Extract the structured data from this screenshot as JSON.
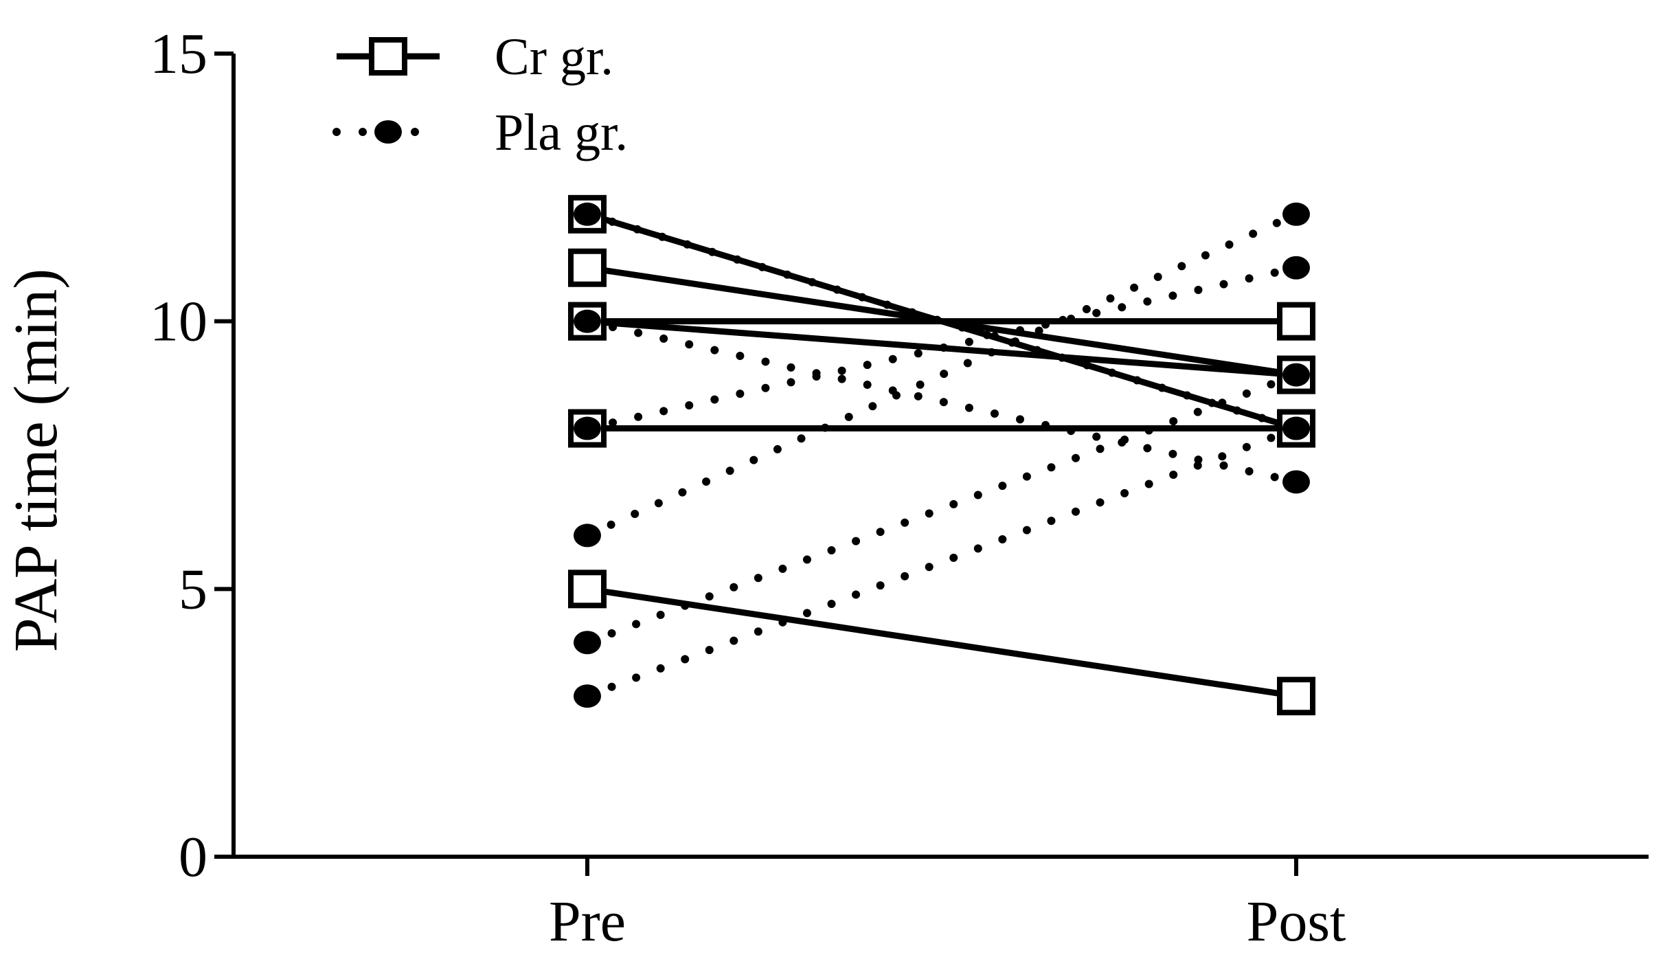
{
  "chart_data": {
    "type": "line",
    "title": "",
    "xlabel": "",
    "ylabel": "PAP time (min)",
    "categories": [
      "Pre",
      "Post"
    ],
    "ylim": [
      0,
      15
    ],
    "yticks": [
      0,
      5,
      10,
      15
    ],
    "grid": false,
    "legend": {
      "position": "top-left",
      "entries": [
        "Cr gr.",
        "Pla gr."
      ]
    },
    "series": [
      {
        "name": "Cr gr.",
        "line_style": "solid",
        "marker": "open-square",
        "color": "#000000",
        "subjects": [
          [
            12,
            8
          ],
          [
            11,
            9
          ],
          [
            10,
            10
          ],
          [
            10,
            9
          ],
          [
            8,
            8
          ],
          [
            5,
            3
          ]
        ]
      },
      {
        "name": "Pla gr.",
        "line_style": "dotted",
        "marker": "filled-circle",
        "color": "#000000",
        "subjects": [
          [
            12,
            8
          ],
          [
            10,
            7
          ],
          [
            8,
            11
          ],
          [
            6,
            12
          ],
          [
            4,
            9
          ],
          [
            3,
            8
          ]
        ]
      }
    ]
  }
}
